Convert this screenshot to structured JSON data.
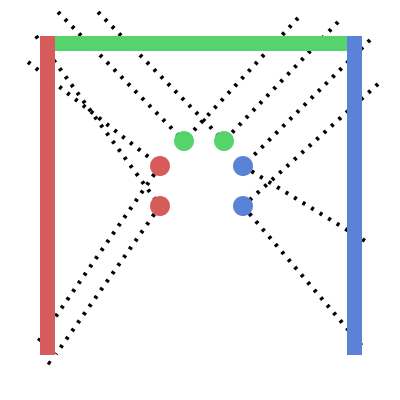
{
  "colors": {
    "background": "#ffffff",
    "red": "#d65c5c",
    "green": "#55d46e",
    "blue": "#5a82d6",
    "dotted_line": "#000000"
  },
  "walls": [
    {
      "name": "left-wall-red",
      "color_key": "red"
    },
    {
      "name": "top-wall-green",
      "color_key": "green"
    },
    {
      "name": "right-wall-blue",
      "color_key": "blue"
    }
  ],
  "pieces": [
    {
      "name": "green-ball-left",
      "color_key": "green"
    },
    {
      "name": "green-ball-right",
      "color_key": "green"
    },
    {
      "name": "red-ball-upper",
      "color_key": "red"
    },
    {
      "name": "red-ball-lower",
      "color_key": "red"
    },
    {
      "name": "blue-ball-upper",
      "color_key": "blue"
    },
    {
      "name": "blue-ball-lower",
      "color_key": "blue"
    }
  ]
}
